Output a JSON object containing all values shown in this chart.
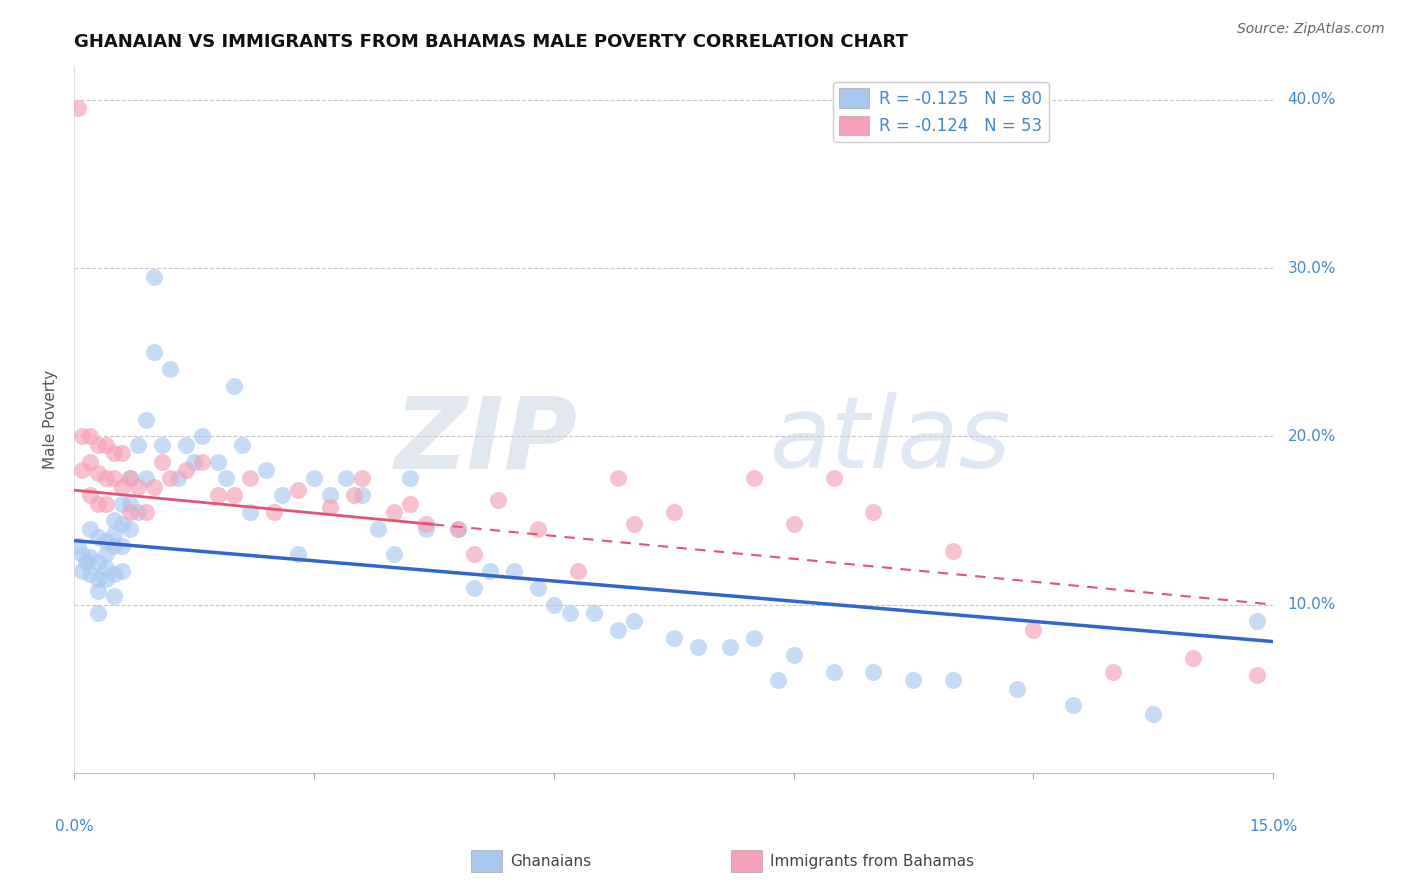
{
  "title": "GHANAIAN VS IMMIGRANTS FROM BAHAMAS MALE POVERTY CORRELATION CHART",
  "source": "Source: ZipAtlas.com",
  "ylabel": "Male Poverty",
  "watermark_zip": "ZIP",
  "watermark_atlas": "atlas",
  "xlim": [
    0.0,
    0.15
  ],
  "ylim": [
    0.0,
    0.42
  ],
  "yticks": [
    0.1,
    0.2,
    0.3,
    0.4
  ],
  "ytick_labels": [
    "10.0%",
    "20.0%",
    "30.0%",
    "40.0%"
  ],
  "ghanaian_color": "#A8C8F0",
  "bahamas_color": "#F5A0B8",
  "ghanaian_line_color": "#3366CC",
  "bahamas_line_color": "#E05575",
  "legend_R_ghanaian": "R = -0.125",
  "legend_N_ghanaian": "N = 80",
  "legend_R_bahamas": "R = -0.124",
  "legend_N_bahamas": "N = 53",
  "ghanaian_x": [
    0.0005,
    0.001,
    0.001,
    0.0015,
    0.002,
    0.002,
    0.002,
    0.003,
    0.003,
    0.003,
    0.003,
    0.003,
    0.004,
    0.004,
    0.004,
    0.004,
    0.005,
    0.005,
    0.005,
    0.005,
    0.005,
    0.006,
    0.006,
    0.006,
    0.006,
    0.007,
    0.007,
    0.007,
    0.008,
    0.008,
    0.009,
    0.009,
    0.01,
    0.01,
    0.011,
    0.012,
    0.013,
    0.014,
    0.015,
    0.016,
    0.018,
    0.019,
    0.02,
    0.021,
    0.022,
    0.024,
    0.026,
    0.028,
    0.03,
    0.032,
    0.034,
    0.036,
    0.038,
    0.04,
    0.042,
    0.044,
    0.048,
    0.05,
    0.052,
    0.055,
    0.058,
    0.06,
    0.062,
    0.065,
    0.068,
    0.07,
    0.075,
    0.078,
    0.082,
    0.085,
    0.088,
    0.09,
    0.095,
    0.1,
    0.105,
    0.11,
    0.118,
    0.125,
    0.135,
    0.148
  ],
  "ghanaian_y": [
    0.135,
    0.13,
    0.12,
    0.125,
    0.145,
    0.128,
    0.118,
    0.14,
    0.125,
    0.115,
    0.108,
    0.095,
    0.138,
    0.13,
    0.122,
    0.115,
    0.15,
    0.142,
    0.135,
    0.118,
    0.105,
    0.16,
    0.148,
    0.135,
    0.12,
    0.175,
    0.16,
    0.145,
    0.195,
    0.155,
    0.21,
    0.175,
    0.295,
    0.25,
    0.195,
    0.24,
    0.175,
    0.195,
    0.185,
    0.2,
    0.185,
    0.175,
    0.23,
    0.195,
    0.155,
    0.18,
    0.165,
    0.13,
    0.175,
    0.165,
    0.175,
    0.165,
    0.145,
    0.13,
    0.175,
    0.145,
    0.145,
    0.11,
    0.12,
    0.12,
    0.11,
    0.1,
    0.095,
    0.095,
    0.085,
    0.09,
    0.08,
    0.075,
    0.075,
    0.08,
    0.055,
    0.07,
    0.06,
    0.06,
    0.055,
    0.055,
    0.05,
    0.04,
    0.035,
    0.09
  ],
  "bahamas_x": [
    0.0005,
    0.001,
    0.001,
    0.002,
    0.002,
    0.002,
    0.003,
    0.003,
    0.003,
    0.004,
    0.004,
    0.004,
    0.005,
    0.005,
    0.006,
    0.006,
    0.007,
    0.007,
    0.008,
    0.009,
    0.01,
    0.011,
    0.012,
    0.014,
    0.016,
    0.018,
    0.02,
    0.022,
    0.025,
    0.028,
    0.032,
    0.036,
    0.04,
    0.044,
    0.048,
    0.053,
    0.058,
    0.063,
    0.068,
    0.075,
    0.085,
    0.09,
    0.095,
    0.1,
    0.11,
    0.12,
    0.13,
    0.14,
    0.148,
    0.035,
    0.042,
    0.05,
    0.07
  ],
  "bahamas_y": [
    0.395,
    0.2,
    0.18,
    0.2,
    0.185,
    0.165,
    0.195,
    0.178,
    0.16,
    0.195,
    0.175,
    0.16,
    0.19,
    0.175,
    0.19,
    0.17,
    0.175,
    0.155,
    0.17,
    0.155,
    0.17,
    0.185,
    0.175,
    0.18,
    0.185,
    0.165,
    0.165,
    0.175,
    0.155,
    0.168,
    0.158,
    0.175,
    0.155,
    0.148,
    0.145,
    0.162,
    0.145,
    0.12,
    0.175,
    0.155,
    0.175,
    0.148,
    0.175,
    0.155,
    0.132,
    0.085,
    0.06,
    0.068,
    0.058,
    0.165,
    0.16,
    0.13,
    0.148
  ],
  "ghanaian_line_x0": 0.0,
  "ghanaian_line_y0": 0.138,
  "ghanaian_line_x1": 0.15,
  "ghanaian_line_y1": 0.078,
  "bahamas_line_x0": 0.0,
  "bahamas_line_y0": 0.168,
  "bahamas_line_solid_end": 0.045,
  "bahamas_line_x1": 0.15,
  "bahamas_line_y1": 0.1,
  "grid_color": "#C8C8C8",
  "bg_color": "#FFFFFF",
  "title_fontsize": 13,
  "axis_label_fontsize": 11,
  "tick_fontsize": 11,
  "legend_fontsize": 12
}
